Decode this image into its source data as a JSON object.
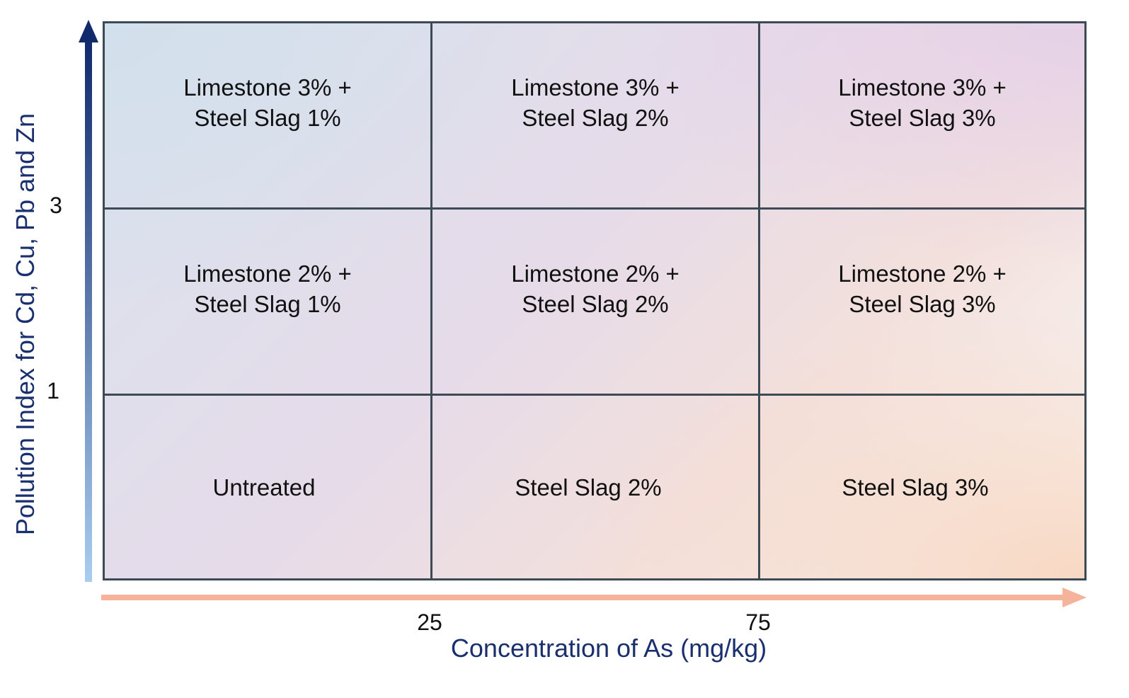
{
  "axes": {
    "y_title": "Pollution Index for Cd, Cu, Pb and Zn",
    "x_title": "Concentration of As (mg/kg)",
    "y_ticks": [
      "3",
      "1"
    ],
    "x_ticks": [
      "25",
      "75"
    ],
    "y_arrow_color_top": "#102a6b",
    "y_arrow_color_bottom": "#a9cdf0",
    "x_arrow_color": "#f5b39b"
  },
  "grid": {
    "line_color": "#3b4a55",
    "rows": [
      [
        "Limestone 3% +\nSteel Slag 1%",
        "Limestone 3% +\nSteel Slag 2%",
        "Limestone 3% +\nSteel Slag 3%"
      ],
      [
        "Limestone 2% +\nSteel Slag 1%",
        "Limestone 2% +\nSteel Slag 2%",
        "Limestone 2% +\nSteel Slag 3%"
      ],
      [
        "Untreated",
        "Steel Slag 2%",
        "Steel Slag 3%"
      ]
    ]
  }
}
